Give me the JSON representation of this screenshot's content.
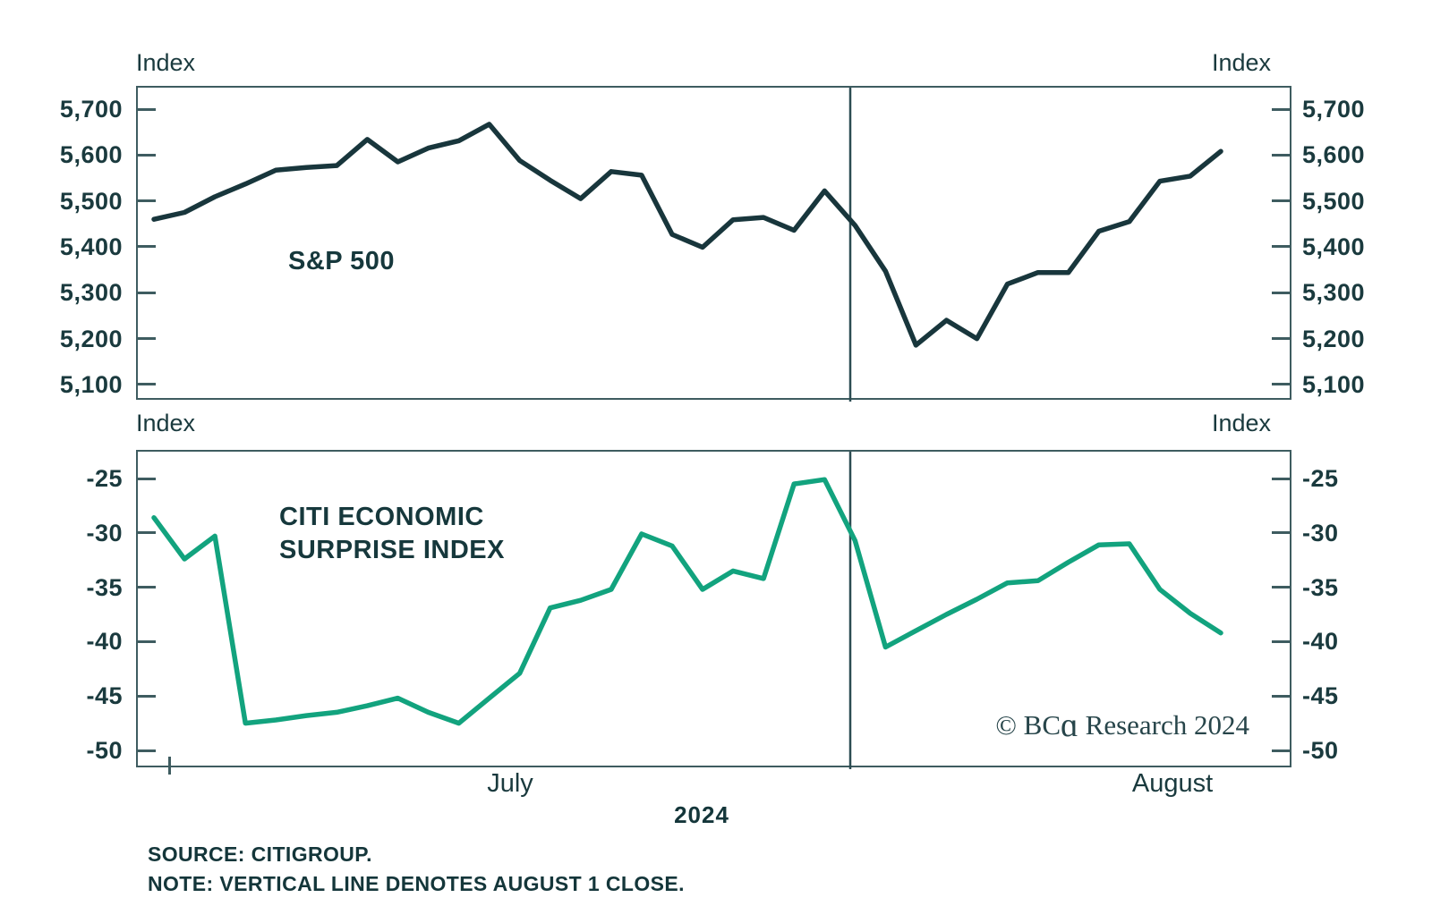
{
  "colors": {
    "sp500_line": "#18363c",
    "cesi_line": "#12a37e",
    "axis": "#3e5c60",
    "text": "#1a3a3e",
    "vertical_line": "#2c4c52"
  },
  "axis_unit_label": "Index",
  "x_axis": {
    "month_left": "July",
    "month_right": "August",
    "year": "2024"
  },
  "footer": {
    "source": "SOURCE: CITIGROUP.",
    "note": "NOTE: VERTICAL LINE DENOTES AUGUST 1 CLOSE."
  },
  "watermark": {
    "prefix": "© BC",
    "alpha": "ɑ",
    "suffix": " Research 2024"
  },
  "chart_data": [
    {
      "type": "line",
      "title": "S&P 500",
      "unit": "Index",
      "legend_position": "inside-left",
      "grid": false,
      "x_dates": [
        "Jun 28",
        "Jul 1",
        "Jul 2",
        "Jul 3",
        "Jul 5",
        "Jul 8",
        "Jul 9",
        "Jul 10",
        "Jul 11",
        "Jul 12",
        "Jul 15",
        "Jul 16",
        "Jul 17",
        "Jul 18",
        "Jul 19",
        "Jul 22",
        "Jul 23",
        "Jul 24",
        "Jul 25",
        "Jul 26",
        "Jul 29",
        "Jul 30",
        "Jul 31",
        "Aug 1",
        "Aug 2",
        "Aug 5",
        "Aug 6",
        "Aug 7",
        "Aug 8",
        "Aug 9",
        "Aug 12",
        "Aug 13",
        "Aug 14",
        "Aug 15",
        "Aug 16",
        "Aug 19"
      ],
      "series": [
        {
          "name": "S&P 500",
          "values": [
            5460,
            5475,
            5509,
            5537,
            5567,
            5573,
            5577,
            5634,
            5585,
            5615,
            5631,
            5667,
            5588,
            5545,
            5505,
            5564,
            5556,
            5427,
            5399,
            5459,
            5464,
            5436,
            5522,
            5447,
            5347,
            5186,
            5240,
            5200,
            5319,
            5344,
            5344,
            5434,
            5455,
            5543,
            5554,
            5608
          ]
        }
      ],
      "ylim": [
        5053,
        5747
      ],
      "yticks": [
        5700,
        5600,
        5500,
        5400,
        5300,
        5200,
        5100
      ],
      "ytick_labels": [
        "5,700",
        "5,600",
        "5,500",
        "5,400",
        "5,300",
        "5,200",
        "5,100"
      ],
      "vertical_marker_date": "Aug 1"
    },
    {
      "type": "line",
      "title": "CITI ECONOMIC\nSURPRISE INDEX",
      "unit": "Index",
      "legend_position": "inside-left",
      "grid": false,
      "x_dates": [
        "Jun 28",
        "Jul 1",
        "Jul 2",
        "Jul 3",
        "Jul 5",
        "Jul 8",
        "Jul 9",
        "Jul 10",
        "Jul 11",
        "Jul 12",
        "Jul 15",
        "Jul 16",
        "Jul 17",
        "Jul 18",
        "Jul 19",
        "Jul 22",
        "Jul 23",
        "Jul 24",
        "Jul 25",
        "Jul 26",
        "Jul 29",
        "Jul 30",
        "Jul 31",
        "Aug 1",
        "Aug 2",
        "Aug 5",
        "Aug 6",
        "Aug 7",
        "Aug 8",
        "Aug 9",
        "Aug 12",
        "Aug 13",
        "Aug 14",
        "Aug 15",
        "Aug 16",
        "Aug 19"
      ],
      "series": [
        {
          "name": "Citi Economic Surprise Index",
          "values": [
            -28.6,
            -32.4,
            -30.3,
            -47.5,
            -47.2,
            -46.8,
            -46.5,
            -45.9,
            -45.2,
            -46.5,
            -47.5,
            -45.2,
            -42.9,
            -36.9,
            -36.2,
            -35.2,
            -30.1,
            -31.2,
            -35.2,
            -33.5,
            -34.2,
            -25.5,
            -25.1,
            -30.7,
            -40.5,
            -39.0,
            -37.5,
            -36.1,
            -34.6,
            -34.4,
            -32.7,
            -31.1,
            -31.0,
            -35.2,
            -37.4,
            -39.2
          ]
        }
      ],
      "ylim": [
        -51.5,
        -23.8
      ],
      "yticks": [
        -25,
        -30,
        -35,
        -40,
        -45,
        -50
      ],
      "ytick_labels": [
        "-25",
        "-30",
        "-35",
        "-40",
        "-45",
        "-50"
      ],
      "vertical_marker_date": "Aug 1"
    }
  ]
}
